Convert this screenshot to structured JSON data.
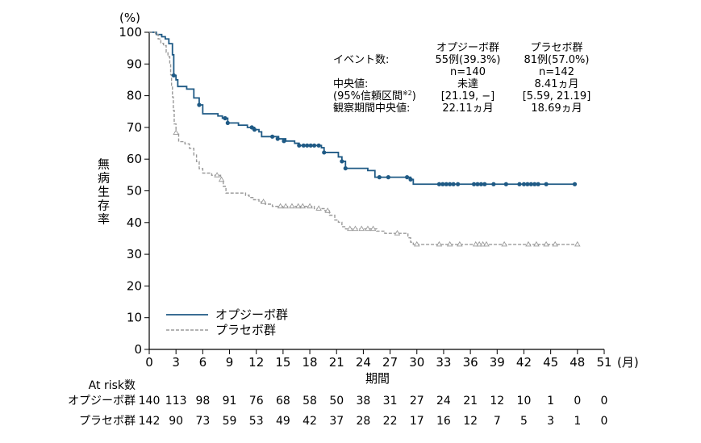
{
  "chart_data": {
    "type": "line",
    "title": "",
    "ylabel": "無病生存率",
    "y_unit": "(%)",
    "x_unit": "(月)",
    "xlabel": "期間",
    "xlim": [
      0,
      51
    ],
    "ylim": [
      0,
      100
    ],
    "x_ticks": [
      0,
      3,
      6,
      9,
      12,
      15,
      18,
      21,
      24,
      27,
      30,
      33,
      36,
      39,
      42,
      45,
      48,
      51
    ],
    "y_ticks": [
      0,
      10,
      20,
      30,
      40,
      50,
      60,
      70,
      80,
      90,
      100
    ],
    "legend": {
      "placement": "bottom-left"
    },
    "colors": {
      "opdivo": "#1f5a85",
      "placebo": "#9a9a9a"
    },
    "series": [
      {
        "name": "オプジーボ群",
        "style": "solid",
        "steps": [
          [
            0,
            100
          ],
          [
            0.8,
            99.3
          ],
          [
            1.4,
            98.6
          ],
          [
            1.8,
            97.9
          ],
          [
            2.2,
            96.4
          ],
          [
            2.6,
            92.9
          ],
          [
            2.75,
            86.4
          ],
          [
            3.0,
            85.0
          ],
          [
            3.2,
            82.9
          ],
          [
            4.2,
            82.1
          ],
          [
            5.0,
            79.3
          ],
          [
            5.6,
            77.1
          ],
          [
            6.0,
            74.3
          ],
          [
            7.7,
            73.6
          ],
          [
            8.2,
            72.9
          ],
          [
            8.8,
            71.4
          ],
          [
            10.0,
            70.7
          ],
          [
            11.0,
            70.0
          ],
          [
            11.8,
            69.3
          ],
          [
            12.3,
            68.6
          ],
          [
            12.6,
            67.1
          ],
          [
            14.5,
            66.4
          ],
          [
            15.3,
            65.7
          ],
          [
            16.3,
            65.0
          ],
          [
            16.8,
            64.3
          ],
          [
            19.3,
            63.6
          ],
          [
            19.6,
            62.1
          ],
          [
            21.2,
            60.7
          ],
          [
            21.6,
            59.3
          ],
          [
            22.0,
            57.1
          ],
          [
            24.5,
            56.4
          ],
          [
            25.3,
            54.3
          ],
          [
            29.3,
            53.6
          ],
          [
            29.6,
            52.1
          ]
        ],
        "end_x": 47.7,
        "censored": [
          [
            2.75,
            86.4
          ],
          [
            5.6,
            77.1
          ],
          [
            8.5,
            72.9
          ],
          [
            8.8,
            71.4
          ],
          [
            11.5,
            70.0
          ],
          [
            11.8,
            69.3
          ],
          [
            13.8,
            67.1
          ],
          [
            14.4,
            66.4
          ],
          [
            15.1,
            65.7
          ],
          [
            16.8,
            64.3
          ],
          [
            17.3,
            64.3
          ],
          [
            17.7,
            64.3
          ],
          [
            18.1,
            64.3
          ],
          [
            18.5,
            64.3
          ],
          [
            19.0,
            64.3
          ],
          [
            19.6,
            62.1
          ],
          [
            21.6,
            59.3
          ],
          [
            22.0,
            57.1
          ],
          [
            25.8,
            54.3
          ],
          [
            26.8,
            54.3
          ],
          [
            28.9,
            54.3
          ],
          [
            29.3,
            53.6
          ],
          [
            32.5,
            52.1
          ],
          [
            32.9,
            52.1
          ],
          [
            33.3,
            52.1
          ],
          [
            33.7,
            52.1
          ],
          [
            34.1,
            52.1
          ],
          [
            34.6,
            52.1
          ],
          [
            36.4,
            52.1
          ],
          [
            36.8,
            52.1
          ],
          [
            37.2,
            52.1
          ],
          [
            37.6,
            52.1
          ],
          [
            38.6,
            52.1
          ],
          [
            40.0,
            52.1
          ],
          [
            41.5,
            52.1
          ],
          [
            42.0,
            52.1
          ],
          [
            42.4,
            52.1
          ],
          [
            42.8,
            52.1
          ],
          [
            43.2,
            52.1
          ],
          [
            43.6,
            52.1
          ],
          [
            44.5,
            52.1
          ],
          [
            47.7,
            52.1
          ]
        ]
      },
      {
        "name": "プラセボ群",
        "style": "dashed",
        "steps": [
          [
            0,
            100
          ],
          [
            0.7,
            99.3
          ],
          [
            1.0,
            97.9
          ],
          [
            1.3,
            96.5
          ],
          [
            1.6,
            95.8
          ],
          [
            1.9,
            93.7
          ],
          [
            2.1,
            92.3
          ],
          [
            2.3,
            90.1
          ],
          [
            2.4,
            86.6
          ],
          [
            2.5,
            83.1
          ],
          [
            2.6,
            79.6
          ],
          [
            2.7,
            75.4
          ],
          [
            2.8,
            71.1
          ],
          [
            3.0,
            68.3
          ],
          [
            3.3,
            65.5
          ],
          [
            4.0,
            64.8
          ],
          [
            4.5,
            63.4
          ],
          [
            5.0,
            61.3
          ],
          [
            5.3,
            59.2
          ],
          [
            5.6,
            57.0
          ],
          [
            6.0,
            55.6
          ],
          [
            7.0,
            54.9
          ],
          [
            8.0,
            53.5
          ],
          [
            8.3,
            51.4
          ],
          [
            8.6,
            49.3
          ],
          [
            10.8,
            48.6
          ],
          [
            11.2,
            47.9
          ],
          [
            11.7,
            47.2
          ],
          [
            12.3,
            46.5
          ],
          [
            13.0,
            45.8
          ],
          [
            13.8,
            45.1
          ],
          [
            18.5,
            44.4
          ],
          [
            19.7,
            43.7
          ],
          [
            20.2,
            42.3
          ],
          [
            20.8,
            40.8
          ],
          [
            21.2,
            40.1
          ],
          [
            21.6,
            38.7
          ],
          [
            22.0,
            38.0
          ],
          [
            25.5,
            37.3
          ],
          [
            26.4,
            36.6
          ],
          [
            29.0,
            35.2
          ],
          [
            29.3,
            33.8
          ],
          [
            29.6,
            33.1
          ]
        ],
        "end_x": 48.0,
        "censored": [
          [
            3.0,
            68.3
          ],
          [
            7.6,
            54.9
          ],
          [
            8.1,
            53.5
          ],
          [
            12.8,
            46.5
          ],
          [
            14.7,
            45.1
          ],
          [
            15.3,
            45.1
          ],
          [
            16.0,
            45.1
          ],
          [
            16.7,
            45.1
          ],
          [
            17.2,
            45.1
          ],
          [
            18.0,
            45.1
          ],
          [
            19.0,
            44.4
          ],
          [
            20.0,
            43.7
          ],
          [
            22.5,
            38.0
          ],
          [
            23.1,
            38.0
          ],
          [
            23.8,
            38.0
          ],
          [
            24.5,
            38.0
          ],
          [
            25.1,
            38.0
          ],
          [
            27.8,
            36.6
          ],
          [
            30.0,
            33.1
          ],
          [
            32.5,
            33.1
          ],
          [
            33.7,
            33.1
          ],
          [
            34.8,
            33.1
          ],
          [
            36.6,
            33.1
          ],
          [
            37.0,
            33.1
          ],
          [
            37.4,
            33.1
          ],
          [
            37.8,
            33.1
          ],
          [
            39.8,
            33.1
          ],
          [
            42.5,
            33.1
          ],
          [
            43.4,
            33.1
          ],
          [
            44.5,
            33.1
          ],
          [
            45.5,
            33.1
          ],
          [
            48.0,
            33.1
          ]
        ]
      }
    ]
  },
  "stats": {
    "col1_header": "オプジーボ群",
    "col2_header": "プラセボ群",
    "rows": [
      {
        "label": "イベント数:",
        "col1": "55例(39.3%)",
        "col2": "81例(57.0%)"
      },
      {
        "label": "",
        "col1": "n=140",
        "col2": "n=142"
      },
      {
        "label": "中央値:",
        "col1": "未達",
        "col2": "8.41ヵ月"
      },
      {
        "label": "(95%信頼区間",
        "label_sup": "※2",
        "label_close": ")",
        "col1": "[21.19, −]",
        "col2": "[5.59, 21.19]"
      },
      {
        "label": "観察期間中央値:",
        "col1": "22.11ヵ月",
        "col2": "18.69ヵ月"
      }
    ]
  },
  "at_risk": {
    "header": "At risk数",
    "rows": [
      {
        "label": "オプジーボ群",
        "values": [
          "140",
          "113",
          "98",
          "91",
          "76",
          "68",
          "58",
          "50",
          "38",
          "31",
          "27",
          "24",
          "21",
          "12",
          "10",
          "1",
          "0",
          "0"
        ]
      },
      {
        "label": "プラセボ群",
        "values": [
          "142",
          "90",
          "73",
          "59",
          "53",
          "49",
          "42",
          "37",
          "28",
          "22",
          "17",
          "16",
          "12",
          "7",
          "5",
          "3",
          "1",
          "0"
        ]
      }
    ]
  }
}
